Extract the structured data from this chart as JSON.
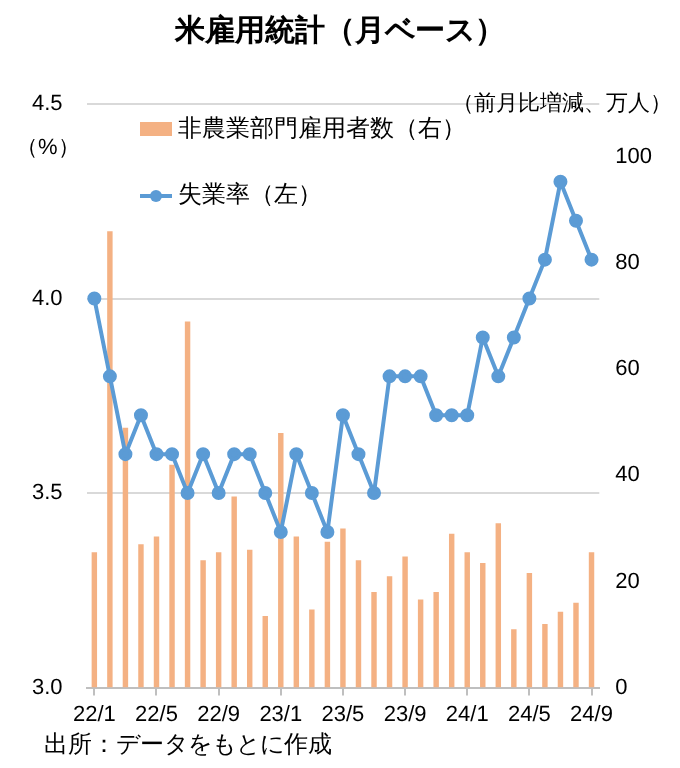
{
  "chart_data": {
    "type": "bar",
    "title": "米雇用統計（月ベース）",
    "ylabel": "（%）",
    "y2label": "（前月比増減、万人）",
    "categories": [
      "22/1",
      null,
      null,
      null,
      "22/5",
      null,
      null,
      null,
      "22/9",
      null,
      null,
      null,
      "23/1",
      null,
      null,
      null,
      "23/5",
      null,
      null,
      null,
      "23/9",
      null,
      null,
      null,
      "24/1",
      null,
      null,
      null,
      "24/5",
      null,
      null,
      null,
      "24/9"
    ],
    "series": [
      {
        "name": "非農業部門雇用者数（右）",
        "axis": "y2",
        "color": "#f4b183",
        "values": [
          25.5,
          86,
          49,
          27,
          28.5,
          42,
          69,
          24,
          25.5,
          36,
          26,
          13.5,
          48,
          28.5,
          14.7,
          27.5,
          30,
          24,
          18,
          21,
          24.7,
          16.6,
          18,
          29,
          25.5,
          23.5,
          31,
          11,
          21.6,
          12,
          14.3,
          16,
          25.5
        ]
      },
      {
        "name": "失業率（左）",
        "type": "line",
        "axis": "y",
        "color": "#5b9bd5",
        "values": [
          4.0,
          3.8,
          3.6,
          3.7,
          3.6,
          3.6,
          3.5,
          3.6,
          3.5,
          3.6,
          3.6,
          3.5,
          3.4,
          3.6,
          3.5,
          3.4,
          3.7,
          3.6,
          3.5,
          3.8,
          3.8,
          3.8,
          3.7,
          3.7,
          3.7,
          3.9,
          3.8,
          3.9,
          4.0,
          4.1,
          4.3,
          4.2,
          4.1
        ]
      }
    ],
    "ylim": [
      3.0,
      4.5
    ],
    "yticks": [
      {
        "value": 3.0,
        "label": "3.0"
      },
      {
        "value": 3.5,
        "label": "3.5"
      },
      {
        "value": 4.0,
        "label": "4.0"
      },
      {
        "value": 4.5,
        "label": "4.5"
      }
    ],
    "y2lim": [
      0,
      110
    ],
    "y2ticks": [
      0,
      20,
      40,
      60,
      80,
      100
    ],
    "grid": "y",
    "legend": "top left",
    "marker": "circle",
    "line_style": "solid",
    "annotations": [
      "出所：データをもとに作成"
    ]
  }
}
